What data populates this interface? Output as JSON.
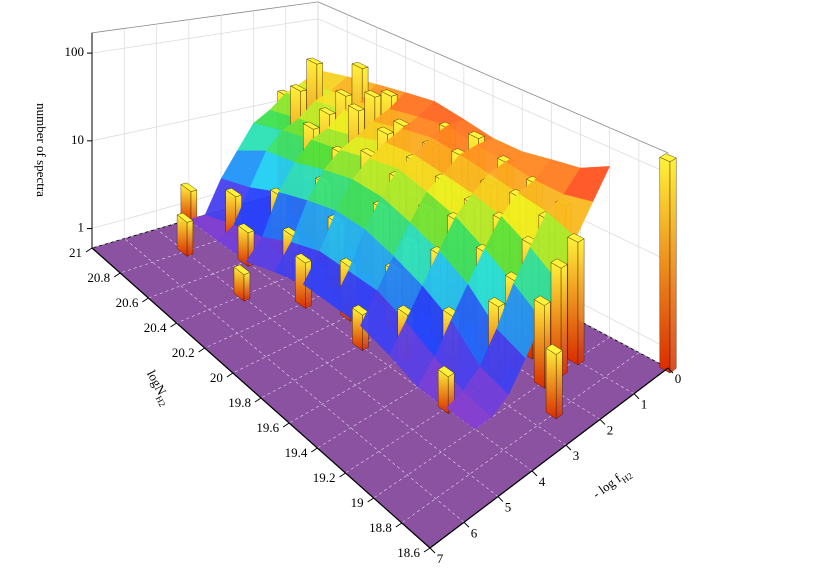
{
  "chart_data": {
    "type": "bar3d",
    "zlabel": "number of spectra",
    "nlabel": {
      "text": "logN",
      "sub": "H2"
    },
    "flabel": {
      "text": "- log f",
      "sub": "H2"
    },
    "zlim": [
      0.6,
      170
    ],
    "zticks": [
      1,
      10,
      100
    ],
    "log_z": true,
    "nlim": [
      18.6,
      21.0
    ],
    "nticks": [
      18.6,
      18.8,
      19.0,
      19.2,
      19.4,
      19.6,
      19.8,
      20.0,
      20.2,
      20.4,
      20.6,
      20.8,
      21.0
    ],
    "flim": [
      0,
      7
    ],
    "fticks": [
      0,
      1,
      2,
      3,
      4,
      5,
      6,
      7
    ],
    "grid": true,
    "floor_color": "#8b52a2",
    "bar_colors": [
      "#fff23a",
      "#d92a00"
    ],
    "surface": {
      "f": [
        0,
        0.5,
        1,
        1.5,
        2,
        2.5,
        3,
        3.5,
        4
      ],
      "logN": [
        19.0,
        19.2,
        19.4,
        19.6,
        19.8,
        20.0,
        20.2,
        20.4,
        20.6,
        20.8,
        21.0
      ],
      "values": [
        [
          60,
          40,
          35,
          30,
          30,
          35,
          40,
          35,
          30,
          25,
          20
        ],
        [
          30,
          25,
          25,
          28,
          30,
          35,
          30,
          25,
          20,
          18,
          15
        ],
        [
          15,
          20,
          22,
          25,
          28,
          30,
          25,
          20,
          18,
          15,
          12
        ],
        [
          6,
          10,
          15,
          18,
          20,
          22,
          20,
          15,
          12,
          10,
          8
        ],
        [
          3,
          5,
          8,
          12,
          15,
          18,
          15,
          12,
          10,
          8,
          6
        ],
        [
          1.5,
          2,
          4,
          6,
          8,
          10,
          10,
          8,
          6,
          5,
          3
        ],
        [
          0.8,
          1,
          2,
          3,
          4,
          5,
          5,
          4,
          3,
          2,
          1.5
        ],
        [
          0.6,
          0.7,
          1,
          1.5,
          2,
          2,
          2,
          1.5,
          1,
          0.8,
          0.6
        ],
        [
          0.6,
          0.6,
          0.6,
          0.8,
          1,
          1,
          1,
          0.8,
          0.6,
          0.6,
          0.6
        ]
      ]
    },
    "bars": [
      {
        "logN": 20.6,
        "f": 0.5,
        "value": 60
      },
      {
        "logN": 20.4,
        "f": 0.5,
        "value": 40
      },
      {
        "logN": 20.0,
        "f": 0.5,
        "value": 35
      },
      {
        "logN": 19.8,
        "f": 0.5,
        "value": 40
      },
      {
        "logN": 19.6,
        "f": 0.5,
        "value": 30
      },
      {
        "logN": 19.4,
        "f": 0.5,
        "value": 25
      },
      {
        "logN": 19.2,
        "f": 0.5,
        "value": 20
      },
      {
        "logN": 21.0,
        "f": 1,
        "value": 12
      },
      {
        "logN": 20.8,
        "f": 1,
        "value": 50
      },
      {
        "logN": 20.6,
        "f": 1,
        "value": 30
      },
      {
        "logN": 20.4,
        "f": 1,
        "value": 45
      },
      {
        "logN": 20.2,
        "f": 1,
        "value": 30
      },
      {
        "logN": 20.0,
        "f": 1,
        "value": 25
      },
      {
        "logN": 19.8,
        "f": 1,
        "value": 30
      },
      {
        "logN": 19.6,
        "f": 1,
        "value": 20
      },
      {
        "logN": 19.4,
        "f": 1,
        "value": 22
      },
      {
        "logN": 19.2,
        "f": 1,
        "value": 18
      },
      {
        "logN": 19.0,
        "f": 1,
        "value": 15
      },
      {
        "logN": 20.8,
        "f": 1.5,
        "value": 25
      },
      {
        "logN": 20.6,
        "f": 1.5,
        "value": 20
      },
      {
        "logN": 20.4,
        "f": 1.5,
        "value": 35
      },
      {
        "logN": 20.2,
        "f": 1.5,
        "value": 28
      },
      {
        "logN": 20.0,
        "f": 1.5,
        "value": 20
      },
      {
        "logN": 19.8,
        "f": 1.5,
        "value": 18
      },
      {
        "logN": 19.6,
        "f": 1.5,
        "value": 15
      },
      {
        "logN": 19.4,
        "f": 1.5,
        "value": 15
      },
      {
        "logN": 19.2,
        "f": 1.5,
        "value": 12
      },
      {
        "logN": 19.0,
        "f": 1.5,
        "value": 10
      },
      {
        "logN": 20.6,
        "f": 2,
        "value": 15
      },
      {
        "logN": 20.4,
        "f": 2,
        "value": 12
      },
      {
        "logN": 20.2,
        "f": 2,
        "value": 18
      },
      {
        "logN": 20.0,
        "f": 2,
        "value": 15
      },
      {
        "logN": 19.8,
        "f": 2,
        "value": 10
      },
      {
        "logN": 19.6,
        "f": 2,
        "value": 12
      },
      {
        "logN": 19.4,
        "f": 2,
        "value": 8
      },
      {
        "logN": 19.2,
        "f": 2,
        "value": 6
      },
      {
        "logN": 19.0,
        "f": 2,
        "value": 5
      },
      {
        "logN": 20.4,
        "f": 2.5,
        "value": 6
      },
      {
        "logN": 20.0,
        "f": 2.5,
        "value": 8
      },
      {
        "logN": 19.8,
        "f": 2.5,
        "value": 5
      },
      {
        "logN": 19.6,
        "f": 2.5,
        "value": 6
      },
      {
        "logN": 19.2,
        "f": 2.5,
        "value": 4
      },
      {
        "logN": 18.8,
        "f": 2.5,
        "value": 3
      },
      {
        "logN": 20.6,
        "f": 3,
        "value": 3
      },
      {
        "logN": 20.2,
        "f": 3,
        "value": 4
      },
      {
        "logN": 19.8,
        "f": 3,
        "value": 3
      },
      {
        "logN": 19.4,
        "f": 3,
        "value": 2.5
      },
      {
        "logN": 20.8,
        "f": 3.5,
        "value": 2
      },
      {
        "logN": 20.4,
        "f": 3.5,
        "value": 2
      },
      {
        "logN": 20.0,
        "f": 3.5,
        "value": 2.5
      },
      {
        "logN": 19.6,
        "f": 3.5,
        "value": 2
      },
      {
        "logN": 21.0,
        "f": 4,
        "value": 1.5
      },
      {
        "logN": 20.6,
        "f": 4,
        "value": 1.5
      },
      {
        "logN": 20.2,
        "f": 4,
        "value": 2
      },
      {
        "logN": 19.8,
        "f": 4,
        "value": 1.5
      },
      {
        "logN": 19.2,
        "f": 4,
        "value": 1.5
      },
      {
        "logN": 20.8,
        "f": 5,
        "value": 1.5
      },
      {
        "logN": 20.4,
        "f": 5,
        "value": 1.2
      },
      {
        "logN": 18.6,
        "f": 0,
        "value": 150
      }
    ]
  }
}
